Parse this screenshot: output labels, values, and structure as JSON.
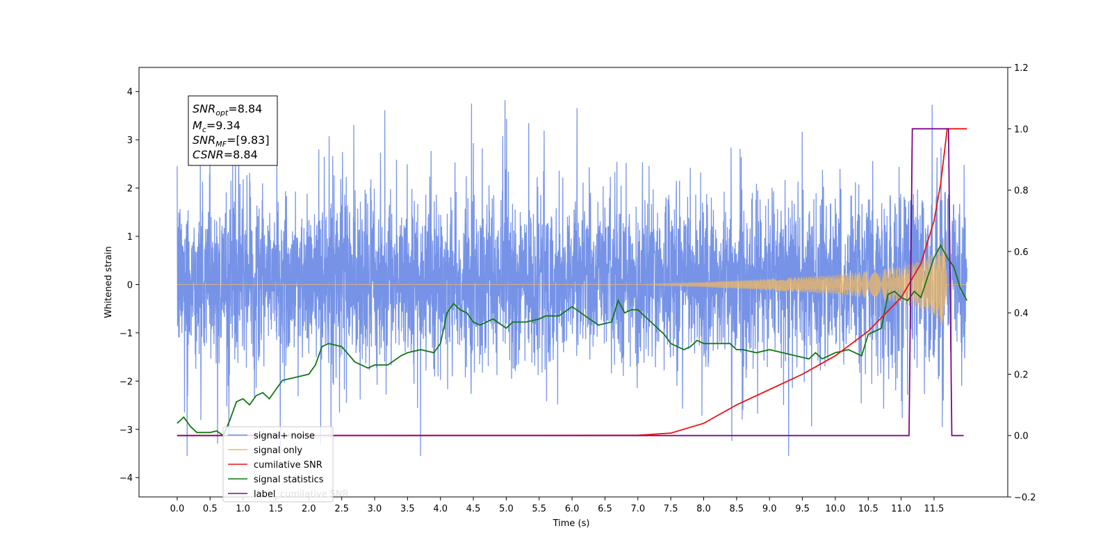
{
  "chart_data": {
    "type": "line",
    "xlabel": "Time (s)",
    "ylabel": "Whitened strain",
    "xlim": [
      -0.58,
      12.62
    ],
    "ylim": [
      -4.4,
      4.5
    ],
    "y2lim": [
      -0.2,
      1.2
    ],
    "x_ticks": [
      "0.0",
      "0.5",
      "1.0",
      "1.5",
      "2.0",
      "2.5",
      "3.0",
      "3.5",
      "4.0",
      "4.5",
      "5.0",
      "5.5",
      "6.0",
      "6.5",
      "7.0",
      "7.5",
      "8.0",
      "8.5",
      "9.0",
      "9.5",
      "10.0",
      "10.5",
      "11.0",
      "11.5"
    ],
    "y_ticks": [
      "−4",
      "−3",
      "−2",
      "−1",
      "0",
      "1",
      "2",
      "3",
      "4"
    ],
    "y2_ticks": [
      "−0.2",
      "0.0",
      "0.2",
      "0.4",
      "0.6",
      "0.8",
      "1.0",
      "1.2"
    ],
    "grid": false,
    "legend_placement": "lower-left",
    "colors": {
      "signal_noise": "#6f8de6",
      "signal_only": "#f0b860",
      "cumulative_snr": "#ee1111",
      "signal_statistics": "#117711",
      "label": "#7a0a8a"
    },
    "annotation": {
      "snr_opt_label": "SNR",
      "snr_opt_sub": "opt",
      "snr_opt_value": "=8.84",
      "mc_label": "M",
      "mc_sub": "c",
      "mc_value": "=9.34",
      "snr_mf_label": "SNR",
      "snr_mf_sub": "MF",
      "snr_mf_value": "=[9.83]",
      "csnr_label": "CSNR",
      "csnr_value": "=8.84"
    },
    "series": [
      {
        "name": "signal+ noise",
        "axis": "left",
        "x_range": [
          0.0,
          12.0
        ],
        "envelope_lower": -2.0,
        "envelope_upper": 2.3,
        "typical_peaks": [
          1.8,
          -1.7
        ]
      },
      {
        "name": "signal only",
        "axis": "left",
        "amplitude": {
          "x": [
            0,
            7.0,
            8.0,
            9.0,
            10.0,
            10.5,
            11.0,
            11.3,
            11.5,
            11.6,
            11.65,
            11.7,
            12.0
          ],
          "y": [
            0,
            0,
            0.05,
            0.12,
            0.2,
            0.28,
            0.38,
            0.5,
            0.65,
            0.8,
            1.0,
            0,
            0
          ]
        }
      },
      {
        "name": "cumilative SNR",
        "axis": "right",
        "x": [
          0,
          7.0,
          7.5,
          8.0,
          8.5,
          9.0,
          9.5,
          10.0,
          10.5,
          11.0,
          11.3,
          11.5,
          11.6,
          11.7,
          12.0
        ],
        "y": [
          0,
          0.001,
          0.008,
          0.04,
          0.1,
          0.15,
          0.2,
          0.26,
          0.34,
          0.45,
          0.56,
          0.7,
          0.82,
          1.0,
          1.0
        ]
      },
      {
        "name": "signal statistics",
        "axis": "right",
        "x": [
          0.0,
          0.05,
          0.1,
          0.2,
          0.3,
          0.5,
          0.6,
          0.7,
          0.8,
          0.9,
          1.0,
          1.1,
          1.2,
          1.3,
          1.4,
          1.5,
          1.6,
          1.8,
          2.0,
          2.1,
          2.2,
          2.3,
          2.5,
          2.7,
          2.9,
          3.0,
          3.2,
          3.4,
          3.5,
          3.7,
          3.9,
          4.0,
          4.1,
          4.2,
          4.3,
          4.4,
          4.5,
          4.6,
          4.8,
          5.0,
          5.1,
          5.3,
          5.5,
          5.6,
          5.8,
          6.0,
          6.2,
          6.4,
          6.6,
          6.7,
          6.8,
          6.9,
          7.0,
          7.2,
          7.4,
          7.5,
          7.7,
          7.8,
          7.9,
          8.0,
          8.2,
          8.4,
          8.5,
          8.6,
          8.8,
          9.0,
          9.2,
          9.4,
          9.6,
          9.7,
          9.8,
          10.0,
          10.2,
          10.4,
          10.5,
          10.7,
          10.8,
          10.9,
          11.0,
          11.1,
          11.2,
          11.3,
          11.5,
          11.6,
          11.7,
          11.8,
          11.9,
          12.0
        ],
        "y": [
          0.04,
          0.05,
          0.06,
          0.03,
          0.01,
          0.01,
          0.015,
          0.0,
          0.05,
          0.11,
          0.12,
          0.1,
          0.13,
          0.14,
          0.12,
          0.15,
          0.18,
          0.19,
          0.2,
          0.23,
          0.29,
          0.3,
          0.29,
          0.24,
          0.22,
          0.23,
          0.23,
          0.26,
          0.27,
          0.28,
          0.27,
          0.3,
          0.4,
          0.43,
          0.41,
          0.4,
          0.37,
          0.36,
          0.38,
          0.35,
          0.37,
          0.37,
          0.38,
          0.39,
          0.39,
          0.42,
          0.39,
          0.36,
          0.37,
          0.44,
          0.4,
          0.41,
          0.41,
          0.37,
          0.33,
          0.3,
          0.28,
          0.29,
          0.31,
          0.3,
          0.3,
          0.3,
          0.28,
          0.28,
          0.27,
          0.28,
          0.27,
          0.26,
          0.25,
          0.27,
          0.25,
          0.27,
          0.28,
          0.26,
          0.33,
          0.35,
          0.46,
          0.47,
          0.45,
          0.44,
          0.47,
          0.45,
          0.58,
          0.62,
          0.58,
          0.55,
          0.48,
          0.44
        ]
      },
      {
        "name": "label",
        "axis": "right",
        "x": [
          0.0,
          11.12,
          11.17,
          11.72,
          11.77,
          11.95
        ],
        "y": [
          0.0,
          0.0,
          1.0,
          1.0,
          0.0,
          0.0
        ]
      },
      {
        "name": "cumilative SNR",
        "axis": "right",
        "legend_only": true,
        "hidden_behind_legend": true
      }
    ],
    "legend": [
      "signal+ noise",
      "signal only",
      "cumilative SNR",
      "signal statistics",
      "label",
      "cumilative SNR"
    ]
  }
}
